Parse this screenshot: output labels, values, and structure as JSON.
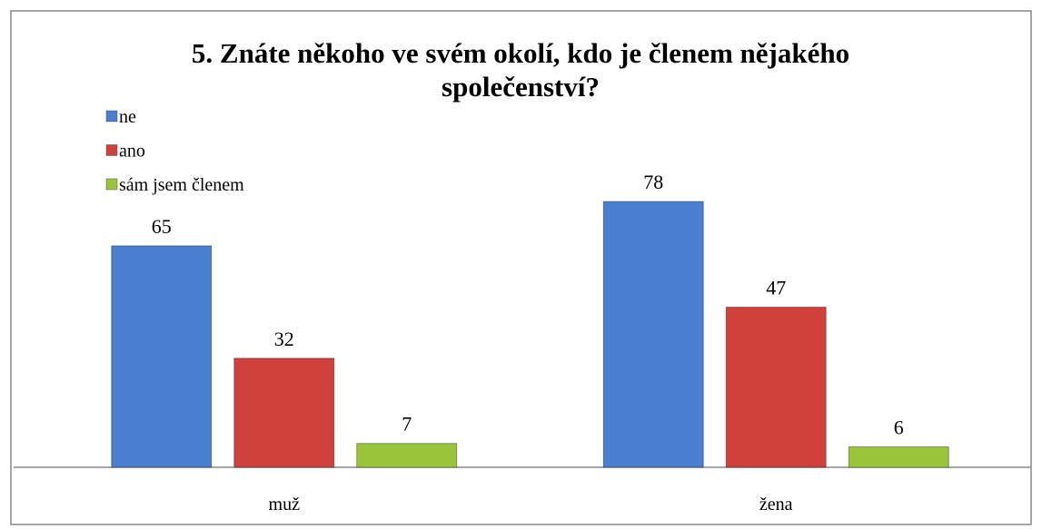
{
  "chart_data": {
    "type": "bar",
    "title": "5. Znáte někoho ve svém okolí, kdo je členem nějakého společenství?",
    "categories": [
      "muž",
      "žena"
    ],
    "series": [
      {
        "name": "ne",
        "color": "#4a7fd0",
        "values": [
          65,
          78
        ]
      },
      {
        "name": "ano",
        "color": "#d0413c",
        "values": [
          32,
          47
        ]
      },
      {
        "name": "sám jsem členem",
        "color": "#9ac43a",
        "values": [
          7,
          6
        ]
      }
    ],
    "ylim": [
      0,
      90
    ],
    "legend": "top-left"
  }
}
